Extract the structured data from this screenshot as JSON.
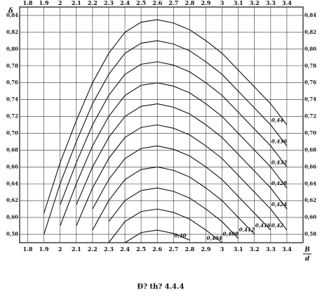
{
  "chart_data": {
    "type": "line",
    "y_label": "δ",
    "x_label_top": "B",
    "x_label_bottom": "d",
    "caption": "Đ? th? 4.4.4",
    "x": [
      1.8,
      1.9,
      2.0,
      2.1,
      2.2,
      2.3,
      2.4,
      2.5,
      2.6,
      2.7,
      2.8,
      2.9,
      3.0,
      3.1,
      3.2,
      3.3,
      3.4
    ],
    "xlim": [
      1.75,
      3.5
    ],
    "xticks": [
      1.8,
      1.9,
      2.0,
      2.1,
      2.2,
      2.3,
      2.4,
      2.5,
      2.6,
      2.7,
      2.8,
      2.9,
      3.0,
      3.1,
      3.2,
      3.3,
      3.4
    ],
    "ylim": [
      0.57,
      0.85
    ],
    "yticks": [
      {
        "value": 0.58,
        "label": "0,58"
      },
      {
        "value": 0.6,
        "label": "0,60"
      },
      {
        "value": 0.62,
        "label": "0,62"
      },
      {
        "value": 0.64,
        "label": "0,64"
      },
      {
        "value": 0.66,
        "label": "0,66"
      },
      {
        "value": 0.68,
        "label": "0,68"
      },
      {
        "value": 0.7,
        "label": "0,70"
      },
      {
        "value": 0.72,
        "label": "0,72"
      },
      {
        "value": 0.74,
        "label": "0,74"
      },
      {
        "value": 0.76,
        "label": "0,76"
      },
      {
        "value": 0.78,
        "label": "0,78"
      },
      {
        "value": 0.8,
        "label": "0,80"
      },
      {
        "value": 0.82,
        "label": "0,82"
      },
      {
        "value": 0.84,
        "label": "0,84"
      }
    ],
    "grid": true,
    "series": [
      {
        "name": "0,40",
        "color": "#111",
        "values": [
          null,
          null,
          null,
          null,
          null,
          null,
          0.57,
          0.582,
          0.585,
          0.581,
          0.573,
          null,
          null,
          null,
          null,
          null,
          null
        ]
      },
      {
        "name": "0,404",
        "color": "#111",
        "values": [
          null,
          null,
          null,
          null,
          null,
          0.57,
          0.595,
          0.607,
          0.61,
          0.606,
          0.598,
          0.585,
          0.57,
          null,
          null,
          null,
          null
        ]
      },
      {
        "name": "0,408",
        "color": "#111",
        "values": [
          null,
          null,
          null,
          null,
          null,
          0.595,
          0.62,
          0.632,
          0.635,
          0.631,
          0.623,
          0.61,
          0.595,
          0.575,
          null,
          null,
          null
        ]
      },
      {
        "name": "0,412",
        "color": "#111",
        "values": [
          null,
          null,
          null,
          null,
          0.585,
          0.62,
          0.645,
          0.657,
          0.66,
          0.656,
          0.648,
          0.635,
          0.62,
          0.6,
          0.58,
          null,
          null
        ]
      },
      {
        "name": "0,416",
        "color": "#111",
        "values": [
          null,
          null,
          null,
          null,
          0.61,
          0.645,
          0.67,
          0.682,
          0.685,
          0.681,
          0.673,
          0.66,
          0.645,
          0.625,
          0.605,
          0.585,
          null
        ]
      },
      {
        "name": "0,42",
        "color": "#111",
        "values": [
          null,
          null,
          null,
          0.59,
          0.635,
          0.67,
          0.695,
          0.707,
          0.71,
          0.706,
          0.698,
          0.685,
          0.67,
          0.65,
          0.63,
          0.61,
          0.585
        ]
      },
      {
        "name": "0,424",
        "color": "#111",
        "values": [
          null,
          null,
          null,
          0.615,
          0.66,
          0.695,
          0.72,
          0.732,
          0.735,
          0.731,
          0.723,
          0.71,
          0.695,
          0.675,
          0.655,
          0.635,
          0.61
        ]
      },
      {
        "name": "0,428",
        "color": "#111",
        "values": [
          null,
          null,
          0.59,
          0.64,
          0.685,
          0.72,
          0.745,
          0.757,
          0.76,
          0.756,
          0.748,
          0.735,
          0.72,
          0.7,
          0.68,
          0.66,
          0.635
        ]
      },
      {
        "name": "0,432",
        "color": "#111",
        "values": [
          null,
          null,
          0.615,
          0.665,
          0.71,
          0.745,
          0.77,
          0.782,
          0.785,
          0.781,
          0.773,
          0.76,
          0.745,
          0.725,
          0.705,
          0.685,
          0.66
        ]
      },
      {
        "name": "0,436",
        "color": "#111",
        "values": [
          null,
          0.58,
          0.64,
          0.69,
          0.735,
          0.77,
          0.795,
          0.807,
          0.81,
          0.806,
          0.798,
          0.785,
          0.77,
          0.75,
          0.73,
          0.71,
          0.685
        ]
      },
      {
        "name": "0,44",
        "color": "#111",
        "values": [
          null,
          0.605,
          0.665,
          0.715,
          0.76,
          0.795,
          0.82,
          0.832,
          0.835,
          0.831,
          0.823,
          0.81,
          0.795,
          0.775,
          0.755,
          0.735,
          0.71
        ]
      }
    ]
  }
}
